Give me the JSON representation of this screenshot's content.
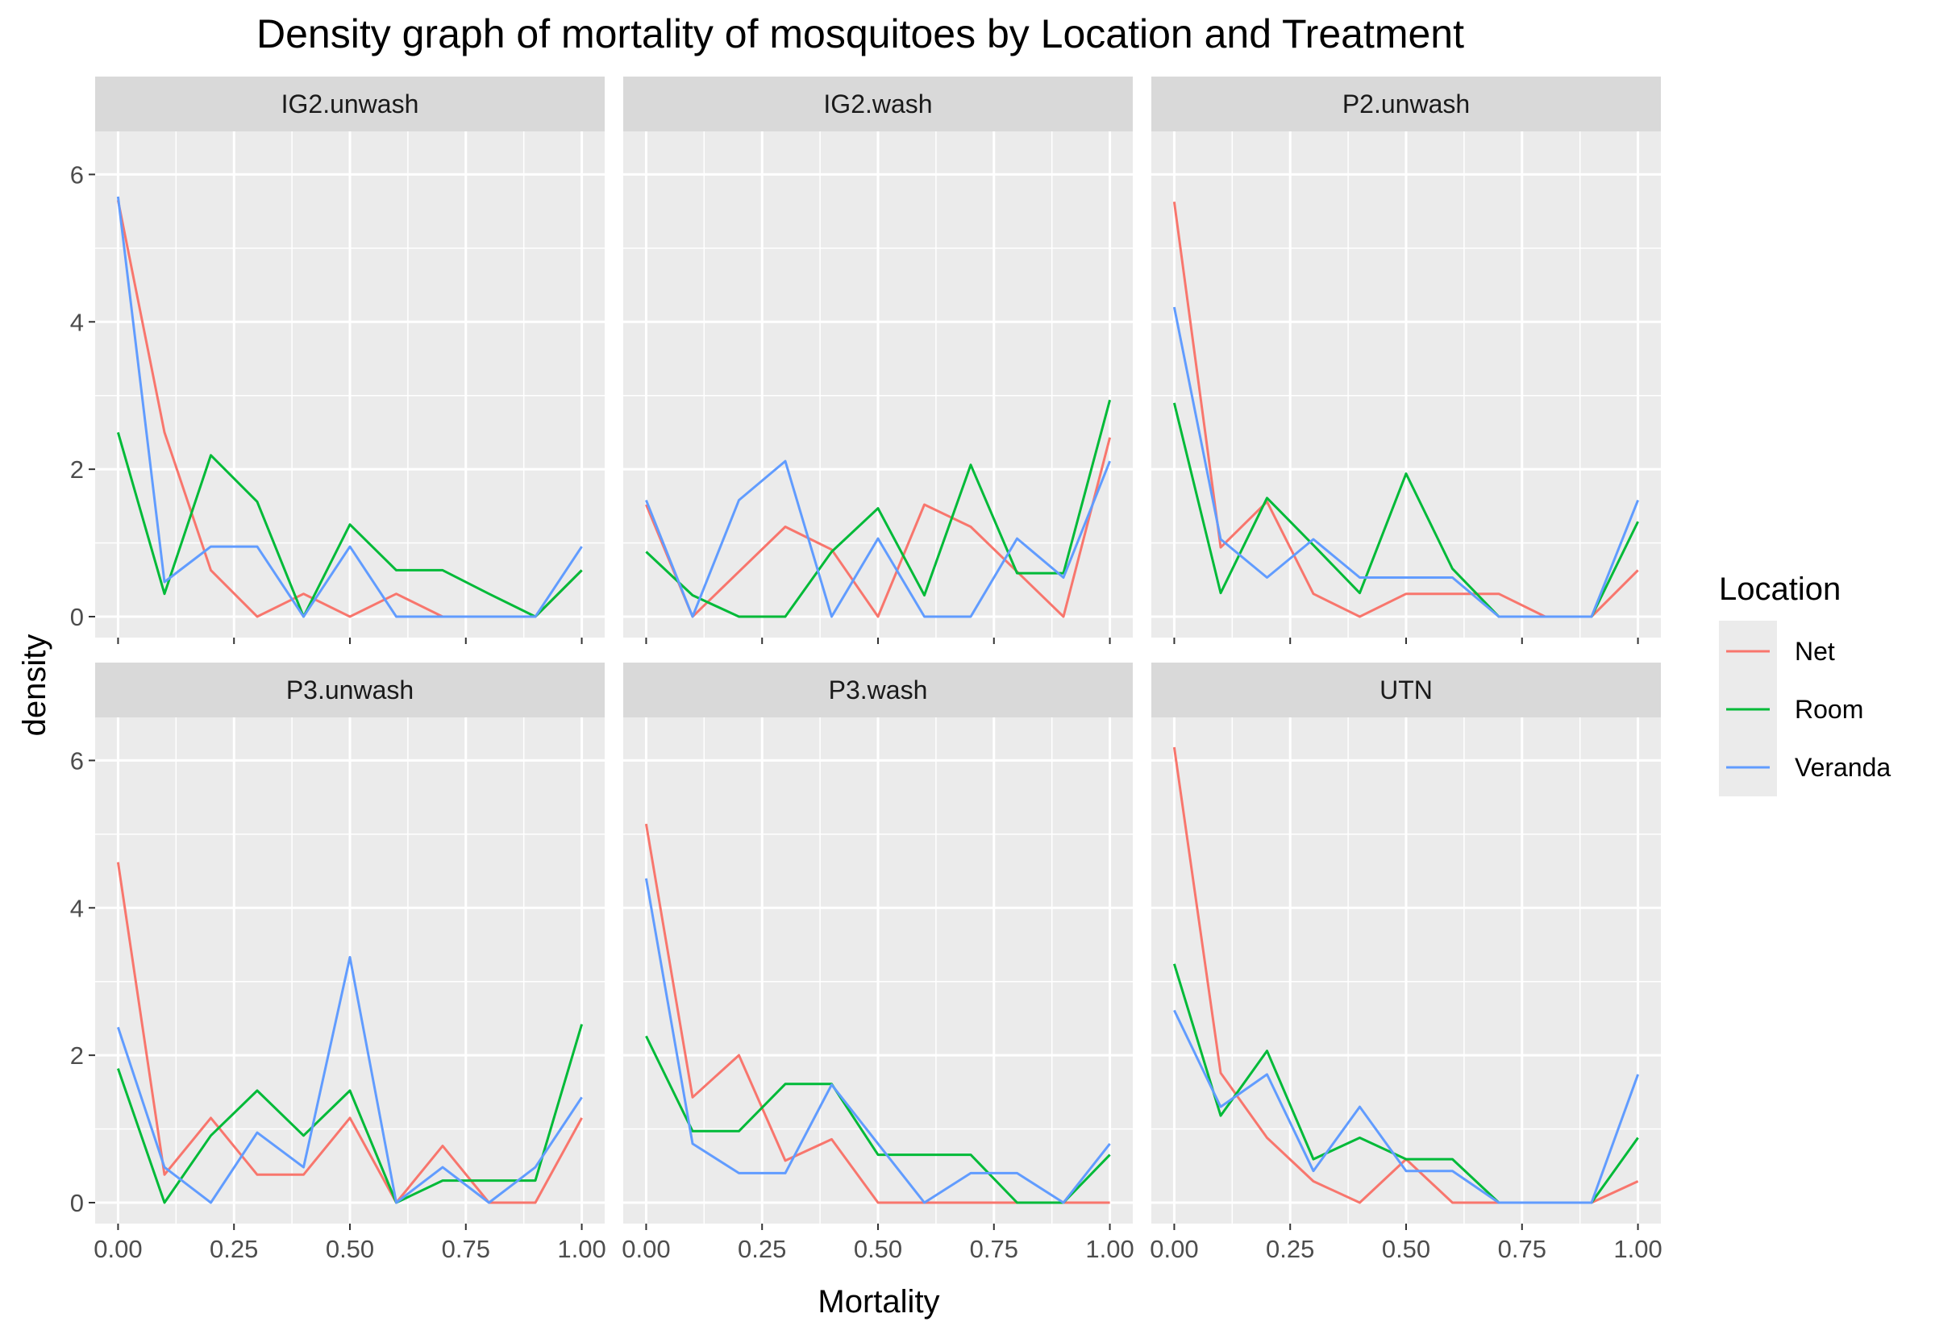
{
  "chart_data": {
    "type": "line",
    "title": "Density graph of mortality of mosquitoes by Location and Treatment",
    "xlabel": "Mortality",
    "ylabel": "density",
    "xlim": [
      0,
      1
    ],
    "ylim": [
      0,
      6.3
    ],
    "x_ticks": [
      0,
      0.25,
      0.5,
      0.75,
      1
    ],
    "x_tick_labels": [
      "0.00",
      "0.25",
      "0.50",
      "0.75",
      "1.00"
    ],
    "y_ticks": [
      0,
      2,
      4,
      6
    ],
    "y_tick_labels": [
      "0",
      "2",
      "4",
      "6"
    ],
    "grid": true,
    "legend": {
      "title": "Location",
      "position": "right",
      "entries": [
        "Net",
        "Room",
        "Veranda"
      ]
    },
    "colors": {
      "Net": "#F8766D",
      "Room": "#00BA38",
      "Veranda": "#619CFF"
    },
    "x": [
      0,
      0.1,
      0.2,
      0.3,
      0.4,
      0.5,
      0.6,
      0.7,
      0.8,
      0.9,
      1.0
    ],
    "panels": [
      {
        "label": "IG2.unwash",
        "series": [
          {
            "name": "Net",
            "values": [
              5.65,
              2.5,
              0.63,
              0.0,
              0.31,
              0.0,
              0.31,
              0.0,
              0.0,
              0.0,
              0.63
            ]
          },
          {
            "name": "Room",
            "values": [
              2.5,
              0.31,
              2.19,
              1.56,
              0.0,
              1.25,
              0.63,
              0.63,
              0.31,
              0.0,
              0.63
            ]
          },
          {
            "name": "Veranda",
            "values": [
              5.7,
              0.47,
              0.95,
              0.95,
              0.0,
              0.95,
              0.0,
              0.0,
              0.0,
              0.0,
              0.95
            ]
          }
        ]
      },
      {
        "label": "IG2.wash",
        "series": [
          {
            "name": "Net",
            "values": [
              1.52,
              0.0,
              0.61,
              1.22,
              0.91,
              0.0,
              1.52,
              1.22,
              0.61,
              0.0,
              2.43
            ]
          },
          {
            "name": "Room",
            "values": [
              0.88,
              0.29,
              0.0,
              0.0,
              0.88,
              1.47,
              0.29,
              2.06,
              0.59,
              0.59,
              2.94
            ]
          },
          {
            "name": "Veranda",
            "values": [
              1.58,
              0.0,
              1.58,
              2.11,
              0.0,
              1.06,
              0.0,
              0.0,
              1.06,
              0.53,
              2.11
            ]
          }
        ]
      },
      {
        "label": "P2.unwash",
        "series": [
          {
            "name": "Net",
            "values": [
              5.63,
              0.94,
              1.56,
              0.31,
              0.0,
              0.31,
              0.31,
              0.31,
              0.0,
              0.0,
              0.63
            ]
          },
          {
            "name": "Room",
            "values": [
              2.9,
              0.32,
              1.61,
              0.97,
              0.32,
              1.94,
              0.65,
              0.0,
              0.0,
              0.0,
              1.29
            ]
          },
          {
            "name": "Veranda",
            "values": [
              4.2,
              1.05,
              0.53,
              1.05,
              0.53,
              0.53,
              0.53,
              0.0,
              0.0,
              0.0,
              1.58
            ]
          }
        ]
      },
      {
        "label": "P3.unwash",
        "series": [
          {
            "name": "Net",
            "values": [
              4.62,
              0.38,
              1.15,
              0.38,
              0.38,
              1.15,
              0.0,
              0.77,
              0.0,
              0.0,
              1.15
            ]
          },
          {
            "name": "Room",
            "values": [
              1.82,
              0.0,
              0.91,
              1.52,
              0.91,
              1.52,
              0.0,
              0.3,
              0.3,
              0.3,
              2.42
            ]
          },
          {
            "name": "Veranda",
            "values": [
              2.38,
              0.48,
              0.0,
              0.95,
              0.48,
              3.33,
              0.0,
              0.48,
              0.0,
              0.48,
              1.43
            ]
          }
        ]
      },
      {
        "label": "P3.wash",
        "series": [
          {
            "name": "Net",
            "values": [
              5.14,
              1.43,
              2.0,
              0.57,
              0.86,
              0.0,
              0.0,
              0.0,
              0.0,
              0.0,
              0.0
            ]
          },
          {
            "name": "Room",
            "values": [
              2.26,
              0.97,
              0.97,
              1.61,
              1.61,
              0.65,
              0.65,
              0.65,
              0.0,
              0.0,
              0.65
            ]
          },
          {
            "name": "Veranda",
            "values": [
              4.4,
              0.8,
              0.4,
              0.4,
              1.6,
              0.8,
              0.0,
              0.4,
              0.4,
              0.0,
              0.8
            ]
          }
        ]
      },
      {
        "label": "UTN",
        "series": [
          {
            "name": "Net",
            "values": [
              6.18,
              1.76,
              0.88,
              0.29,
              0.0,
              0.59,
              0.0,
              0.0,
              0.0,
              0.0,
              0.29
            ]
          },
          {
            "name": "Room",
            "values": [
              3.24,
              1.18,
              2.06,
              0.59,
              0.88,
              0.59,
              0.59,
              0.0,
              0.0,
              0.0,
              0.88
            ]
          },
          {
            "name": "Veranda",
            "values": [
              2.61,
              1.3,
              1.74,
              0.43,
              1.3,
              0.43,
              0.43,
              0.0,
              0.0,
              0.0,
              1.74
            ]
          }
        ]
      }
    ]
  }
}
